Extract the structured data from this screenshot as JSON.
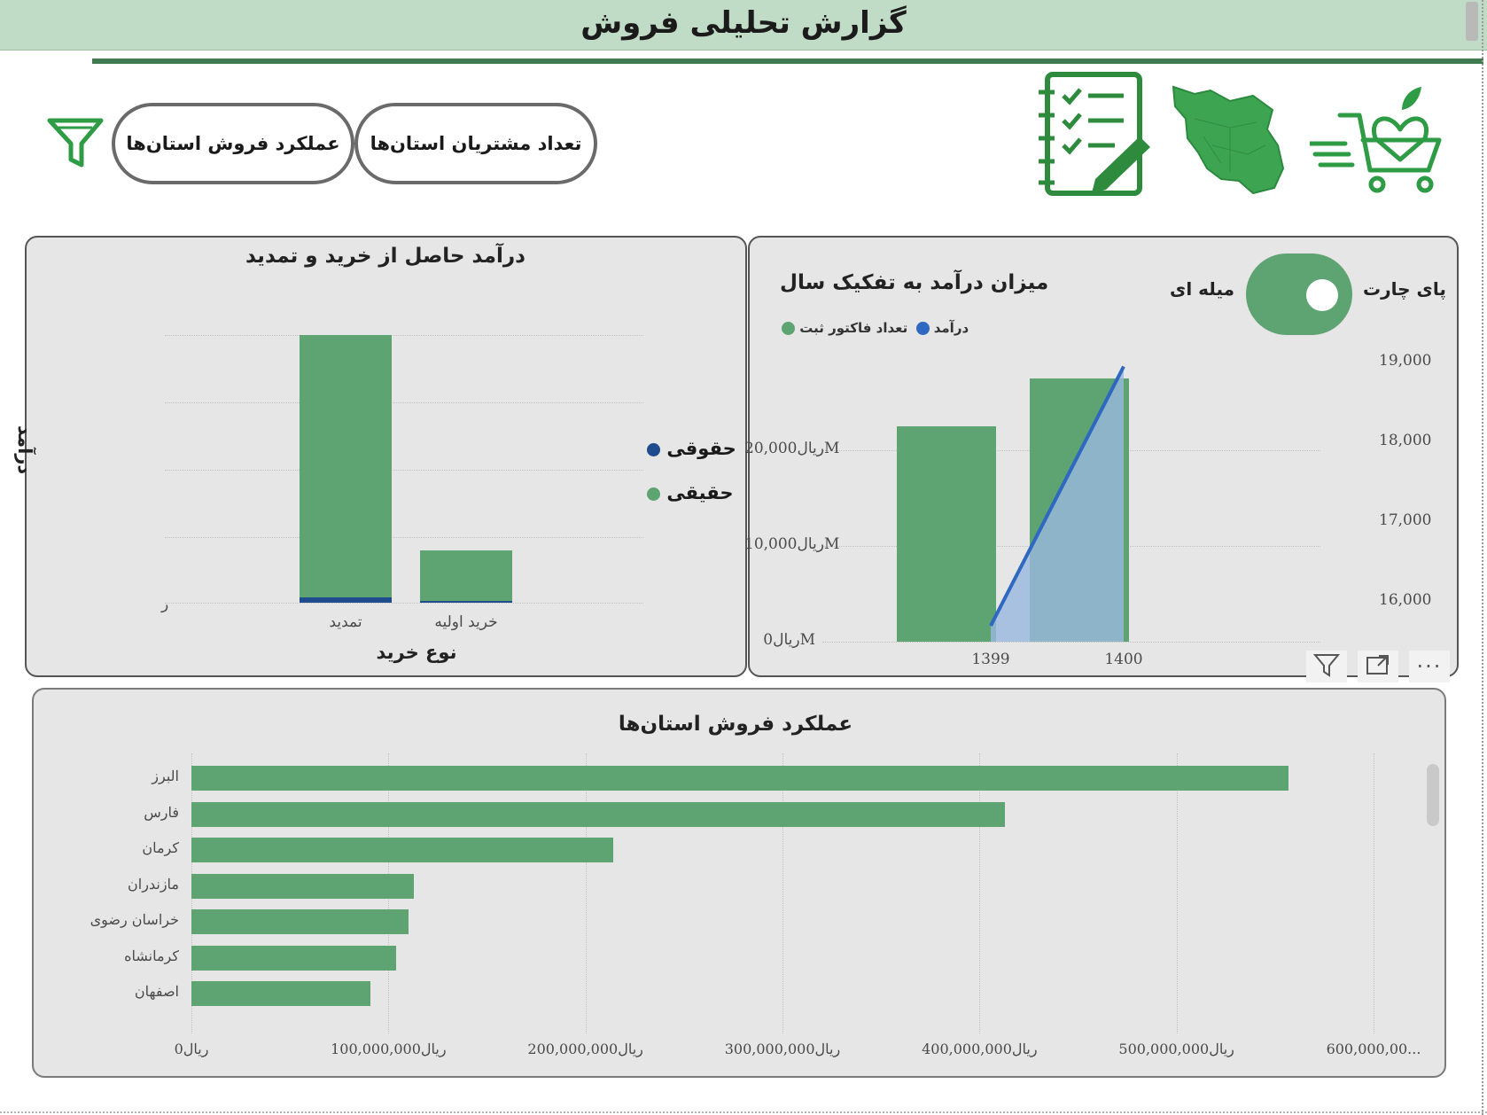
{
  "header": {
    "title": "گزارش تحلیلی فروش"
  },
  "toolbar": {
    "customers_button": "تعداد مشتریان استان‌ها",
    "performance_button": "عملکرد فروش استان‌ها",
    "icons": [
      "filter-icon",
      "checklist-notebook-icon",
      "iran-map-icon",
      "shopping-cart-heart-icon"
    ]
  },
  "purchase_chart": {
    "title": "درآمد حاصل از خرید و تمدید",
    "xlabel": "نوع خرید",
    "ylabel": "درآمد",
    "y_tick": "ر",
    "legend": [
      {
        "label": "حقوقی",
        "color": "#1e4c8c"
      },
      {
        "label": "حقیقی",
        "color": "#5ea372"
      }
    ]
  },
  "year_chart": {
    "title": "میزان درآمد به تفکیک سال",
    "toggle_left_label": "پای چارت",
    "toggle_right_label": "میله ای",
    "legend": [
      {
        "label": "تعداد فاکتور ثبت",
        "color": "#2e68c0"
      },
      {
        "label": "درآمد",
        "color": "#5ea372"
      }
    ],
    "y_left_ticks": [
      "ریال0M",
      "ریال10,000M",
      "ریال20,000M"
    ],
    "y_right_ticks": [
      "16,000",
      "17,000",
      "18,000",
      "19,000"
    ],
    "x_ticks": [
      "1399",
      "1400"
    ],
    "visual_icons": [
      "filter-icon",
      "focus-mode-icon",
      "more-options-icon"
    ]
  },
  "province_chart": {
    "title": "عملکرد فروش استان‌ها",
    "x_ticks": [
      "ریال0",
      "ریال100,000,000",
      "ریال200,000,000",
      "ریال300,000,000",
      "ریال400,000,000",
      "ریال500,000,000",
      "600,000,00..."
    ]
  },
  "chart_data": [
    {
      "type": "bar",
      "title": "درآمد حاصل از خرید و تمدید",
      "xlabel": "نوع خرید",
      "ylabel": "درآمد",
      "stacked": true,
      "categories": [
        "تمدید",
        "خرید اولیه"
      ],
      "series": [
        {
          "name": "حقیقی",
          "values": [
            98,
            19
          ],
          "color": "#5ea372"
        },
        {
          "name": "حقوقی",
          "values": [
            2,
            0.7
          ],
          "color": "#1e4c8c"
        }
      ],
      "ylim": [
        0,
        100
      ],
      "legend": "right"
    },
    {
      "type": "bar",
      "title": "میزان درآمد به تفکیک سال",
      "categories": [
        "1399",
        "1400"
      ],
      "series": [
        {
          "name": "درآمد",
          "type": "bar",
          "axis": "left",
          "values": [
            22500,
            27500
          ],
          "color": "#5ea372"
        },
        {
          "name": "تعداد فاکتور ثبت",
          "type": "line",
          "axis": "right",
          "values": [
            15700,
            18950
          ],
          "color": "#2e68c0"
        }
      ],
      "ylim_left": [
        0,
        30000
      ],
      "ylim_right": [
        15500,
        19100
      ],
      "legend": "top-left"
    },
    {
      "type": "bar",
      "orientation": "horizontal",
      "title": "عملکرد فروش استان‌ها",
      "categories": [
        "البرز",
        "فارس",
        "کرمان",
        "مازندران",
        "خراسان رضوی",
        "کرمانشاه",
        "اصفهان"
      ],
      "values": [
        557000000,
        413000000,
        214000000,
        113000000,
        110000000,
        104000000,
        91000000
      ],
      "xlim": [
        0,
        600000000
      ],
      "color": "#5ea372"
    }
  ]
}
